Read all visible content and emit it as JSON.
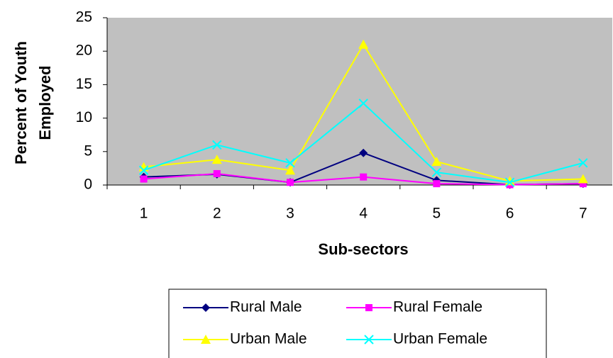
{
  "chart_data": {
    "type": "line",
    "xlabel": "Sub-sectors",
    "ylabel": "Percent of Youth Employed",
    "categories": [
      "1",
      "2",
      "3",
      "4",
      "5",
      "6",
      "7"
    ],
    "series": [
      {
        "name": "Rural Male",
        "color": "#000080",
        "marker": "diamond",
        "values": [
          1.2,
          1.6,
          0.4,
          4.8,
          0.7,
          0.05,
          0.2
        ]
      },
      {
        "name": "Rural Female",
        "color": "#ff00ff",
        "marker": "square",
        "values": [
          0.9,
          1.7,
          0.4,
          1.2,
          0.2,
          0.05,
          0.2
        ]
      },
      {
        "name": "Urban Male",
        "color": "#ffff00",
        "marker": "triangle",
        "values": [
          2.7,
          3.8,
          2.2,
          21,
          3.5,
          0.6,
          0.9
        ]
      },
      {
        "name": "Urban Female",
        "color": "#00ffff",
        "marker": "x",
        "values": [
          2.2,
          6.0,
          3.3,
          12.2,
          1.9,
          0.4,
          3.3
        ]
      }
    ],
    "ylim": [
      0,
      25
    ],
    "yticks": [
      0,
      5,
      10,
      15,
      20,
      25
    ],
    "grid": false,
    "legend": "bottom"
  }
}
